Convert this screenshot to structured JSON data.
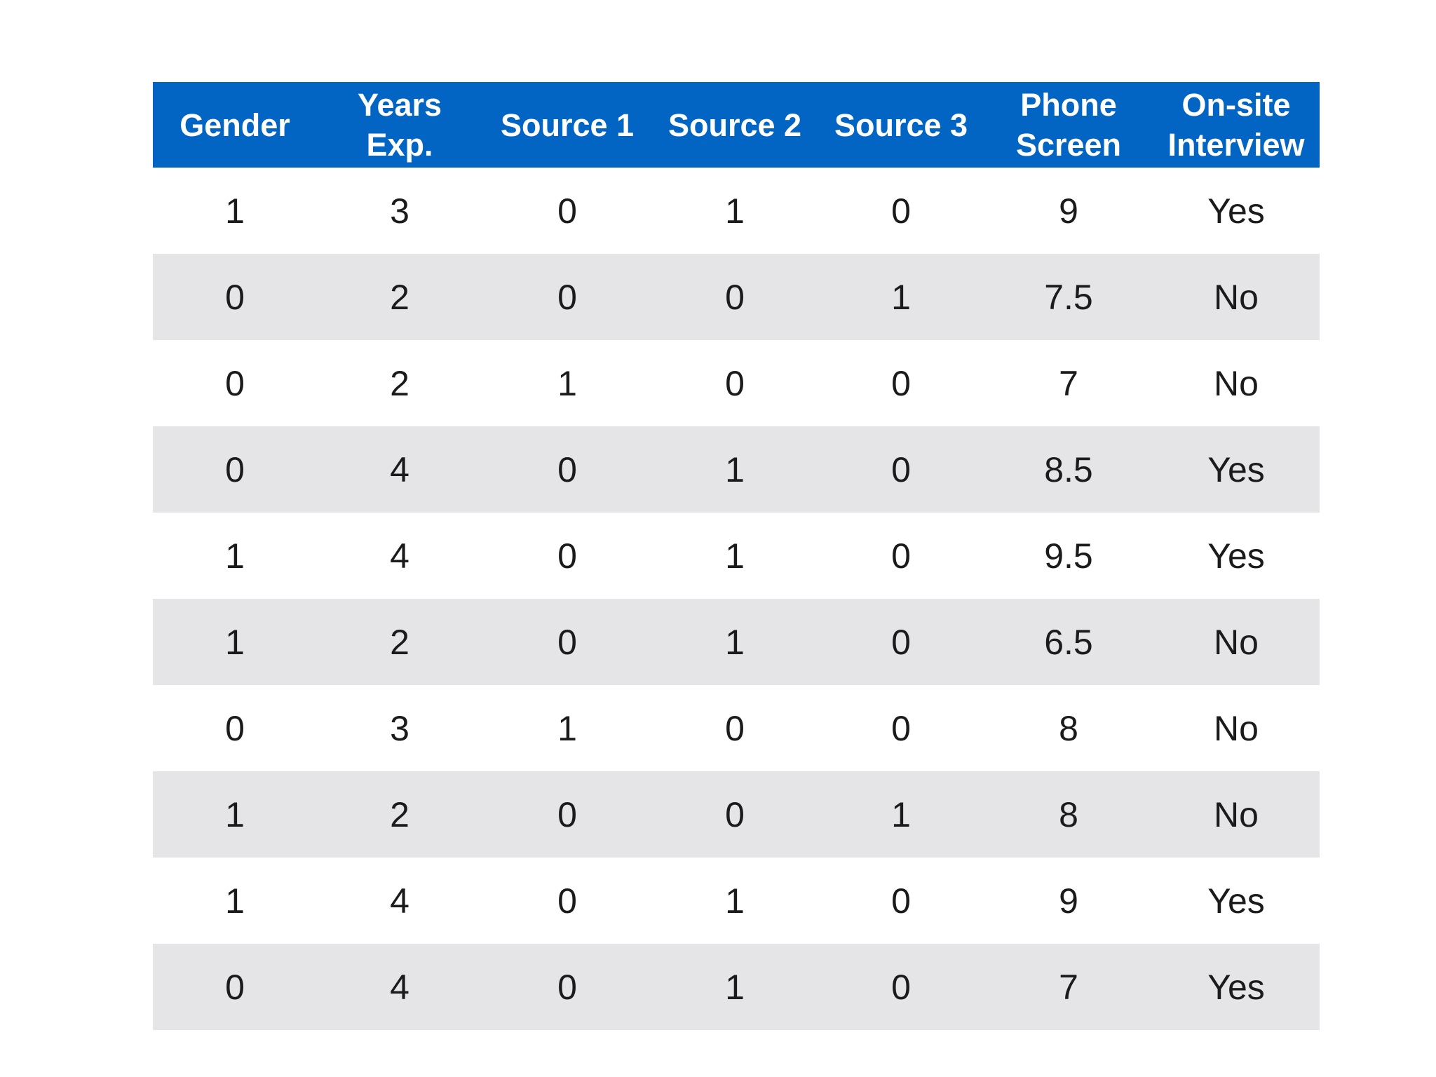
{
  "table": {
    "headers": [
      "Gender",
      "Years\nExp.",
      "Source 1",
      "Source 2",
      "Source 3",
      "Phone\nScreen",
      "On-site\nInterview"
    ],
    "rows": [
      [
        "1",
        "3",
        "0",
        "1",
        "0",
        "9",
        "Yes"
      ],
      [
        "0",
        "2",
        "0",
        "0",
        "1",
        "7.5",
        "No"
      ],
      [
        "0",
        "2",
        "1",
        "0",
        "0",
        "7",
        "No"
      ],
      [
        "0",
        "4",
        "0",
        "1",
        "0",
        "8.5",
        "Yes"
      ],
      [
        "1",
        "4",
        "0",
        "1",
        "0",
        "9.5",
        "Yes"
      ],
      [
        "1",
        "2",
        "0",
        "1",
        "0",
        "6.5",
        "No"
      ],
      [
        "0",
        "3",
        "1",
        "0",
        "0",
        "8",
        "No"
      ],
      [
        "1",
        "2",
        "0",
        "0",
        "1",
        "8",
        "No"
      ],
      [
        "1",
        "4",
        "0",
        "1",
        "0",
        "9",
        "Yes"
      ],
      [
        "0",
        "4",
        "0",
        "1",
        "0",
        "7",
        "Yes"
      ]
    ]
  },
  "colors": {
    "header_background": "#0264c3",
    "header_text": "#ffffff",
    "stripe_background": "#e5e5e8",
    "cell_text": "#1b1b1b"
  }
}
